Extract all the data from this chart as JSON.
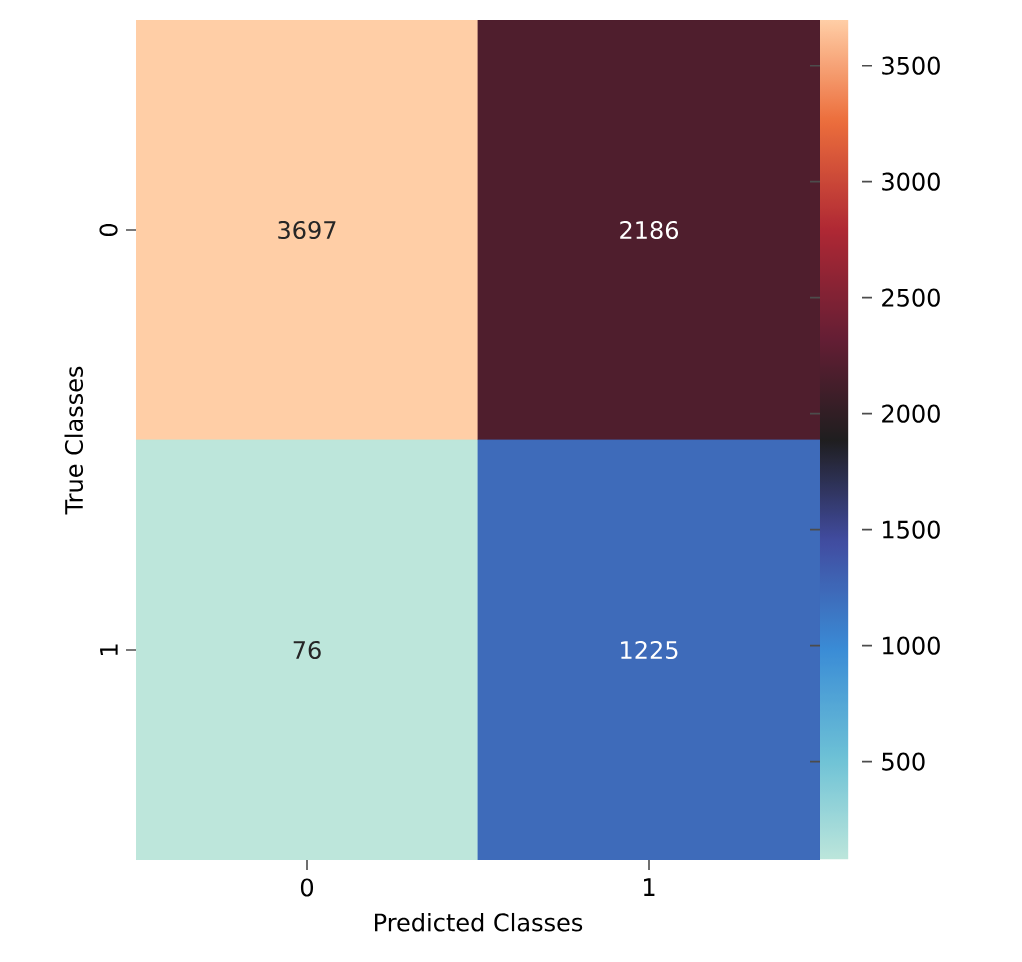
{
  "chart_data": {
    "type": "heatmap",
    "xlabel": "Predicted Classes",
    "ylabel": "True Classes",
    "categories": [
      "0",
      "1"
    ],
    "y_categories": [
      "0",
      "1"
    ],
    "cells": [
      [
        3697,
        2186
      ],
      [
        76,
        1225
      ]
    ],
    "clim": [
      76,
      3697
    ],
    "cticks": [
      500,
      1000,
      1500,
      2000,
      2500,
      3000,
      3500
    ],
    "data_labels": true
  }
}
